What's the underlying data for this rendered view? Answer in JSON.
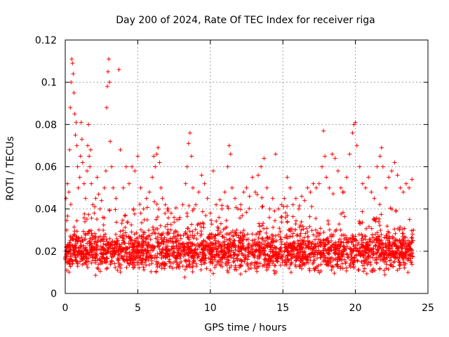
{
  "chart_data": {
    "type": "scatter",
    "title": "Day 200 of 2024, Rate Of TEC Index for receiver riga",
    "xlabel": "GPS time / hours",
    "ylabel": "ROTI / TECUs",
    "xlim": [
      0,
      25
    ],
    "ylim": [
      0,
      0.12
    ],
    "x_ticks": [
      "0",
      "5",
      "10",
      "15",
      "20",
      "25"
    ],
    "y_ticks": [
      "0",
      "0.02",
      "0.04",
      "0.06",
      "0.08",
      "0.1",
      "0.12"
    ],
    "grid": true,
    "marker": "+",
    "color": "#ff0000",
    "series": [
      {
        "values": [
          [
            0.02,
            0.016
          ],
          [
            0.05,
            0.045
          ],
          [
            0.1,
            0.03
          ],
          [
            0.15,
            0.052
          ],
          [
            0.2,
            0.022
          ],
          [
            0.25,
            0.048
          ],
          [
            0.3,
            0.068
          ],
          [
            0.35,
            0.088
          ],
          [
            0.4,
            0.1
          ],
          [
            0.45,
            0.111
          ],
          [
            0.5,
            0.109
          ],
          [
            0.55,
            0.104
          ],
          [
            0.6,
            0.095
          ],
          [
            0.65,
            0.085
          ],
          [
            0.7,
            0.075
          ],
          [
            0.75,
            0.081
          ],
          [
            0.8,
            0.07
          ],
          [
            0.85,
            0.06
          ],
          [
            0.9,
            0.05
          ],
          [
            1.0,
            0.055
          ],
          [
            1.05,
            0.065
          ],
          [
            1.1,
            0.081
          ],
          [
            1.15,
            0.073
          ],
          [
            1.2,
            0.062
          ],
          [
            1.3,
            0.052
          ],
          [
            1.4,
            0.045
          ],
          [
            1.5,
            0.058
          ],
          [
            1.55,
            0.07
          ],
          [
            1.6,
            0.08
          ],
          [
            1.65,
            0.065
          ],
          [
            1.7,
            0.06
          ],
          [
            1.75,
            0.068
          ],
          [
            1.8,
            0.052
          ],
          [
            1.9,
            0.042
          ],
          [
            2.0,
            0.038
          ],
          [
            2.1,
            0.045
          ],
          [
            2.2,
            0.055
          ],
          [
            2.3,
            0.047
          ],
          [
            2.4,
            0.04
          ],
          [
            2.5,
            0.044
          ],
          [
            2.6,
            0.036
          ],
          [
            2.7,
            0.05
          ],
          [
            2.8,
            0.058
          ],
          [
            2.85,
            0.088
          ],
          [
            2.9,
            0.098
          ],
          [
            2.95,
            0.105
          ],
          [
            3.0,
            0.111
          ],
          [
            3.05,
            0.1
          ],
          [
            3.1,
            0.072
          ],
          [
            3.2,
            0.06
          ],
          [
            3.3,
            0.05
          ],
          [
            3.5,
            0.045
          ],
          [
            3.7,
            0.106
          ],
          [
            3.8,
            0.068
          ],
          [
            4.0,
            0.05
          ],
          [
            4.2,
            0.06
          ],
          [
            4.4,
            0.052
          ],
          [
            4.6,
            0.06
          ],
          [
            4.8,
            0.058
          ],
          [
            5.0,
            0.065
          ],
          [
            5.2,
            0.05
          ],
          [
            5.4,
            0.04
          ],
          [
            5.6,
            0.045
          ],
          [
            5.8,
            0.048
          ],
          [
            6.0,
            0.055
          ],
          [
            6.1,
            0.065
          ],
          [
            6.2,
            0.06
          ],
          [
            6.3,
            0.066
          ],
          [
            6.4,
            0.069
          ],
          [
            6.5,
            0.062
          ],
          [
            6.6,
            0.05
          ],
          [
            6.7,
            0.045
          ],
          [
            6.9,
            0.042
          ],
          [
            7.1,
            0.04
          ],
          [
            7.3,
            0.038
          ],
          [
            7.5,
            0.036
          ],
          [
            7.7,
            0.035
          ],
          [
            7.9,
            0.036
          ],
          [
            8.1,
            0.042
          ],
          [
            8.3,
            0.052
          ],
          [
            8.4,
            0.06
          ],
          [
            8.5,
            0.071
          ],
          [
            8.6,
            0.076
          ],
          [
            8.7,
            0.065
          ],
          [
            8.8,
            0.05
          ],
          [
            9.0,
            0.042
          ],
          [
            9.2,
            0.048
          ],
          [
            9.4,
            0.056
          ],
          [
            9.6,
            0.052
          ],
          [
            9.8,
            0.045
          ],
          [
            10.0,
            0.038
          ],
          [
            10.2,
            0.058
          ],
          [
            10.4,
            0.042
          ],
          [
            10.6,
            0.036
          ],
          [
            10.8,
            0.04
          ],
          [
            11.0,
            0.048
          ],
          [
            11.2,
            0.06
          ],
          [
            11.3,
            0.07
          ],
          [
            11.4,
            0.066
          ],
          [
            11.5,
            0.05
          ],
          [
            11.7,
            0.045
          ],
          [
            11.9,
            0.04
          ],
          [
            12.1,
            0.042
          ],
          [
            12.3,
            0.048
          ],
          [
            12.5,
            0.05
          ],
          [
            12.7,
            0.046
          ],
          [
            12.9,
            0.055
          ],
          [
            13.1,
            0.048
          ],
          [
            13.3,
            0.056
          ],
          [
            13.5,
            0.06
          ],
          [
            13.7,
            0.064
          ],
          [
            13.9,
            0.05
          ],
          [
            14.1,
            0.04
          ],
          [
            14.3,
            0.045
          ],
          [
            14.5,
            0.066
          ],
          [
            14.7,
            0.04
          ],
          [
            14.9,
            0.042
          ],
          [
            15.1,
            0.045
          ],
          [
            15.3,
            0.055
          ],
          [
            15.5,
            0.05
          ],
          [
            15.7,
            0.042
          ],
          [
            15.9,
            0.045
          ],
          [
            16.1,
            0.04
          ],
          [
            16.3,
            0.046
          ],
          [
            16.5,
            0.044
          ],
          [
            16.7,
            0.05
          ],
          [
            16.9,
            0.048
          ],
          [
            17.1,
            0.052
          ],
          [
            17.3,
            0.05
          ],
          [
            17.5,
            0.052
          ],
          [
            17.7,
            0.06
          ],
          [
            17.8,
            0.077
          ],
          [
            17.9,
            0.065
          ],
          [
            18.0,
            0.055
          ],
          [
            18.2,
            0.05
          ],
          [
            18.4,
            0.066
          ],
          [
            18.6,
            0.064
          ],
          [
            18.8,
            0.058
          ],
          [
            19.0,
            0.05
          ],
          [
            19.2,
            0.048
          ],
          [
            19.4,
            0.055
          ],
          [
            19.6,
            0.066
          ],
          [
            19.8,
            0.076
          ],
          [
            19.9,
            0.08
          ],
          [
            20.0,
            0.081
          ],
          [
            20.1,
            0.07
          ],
          [
            20.3,
            0.06
          ],
          [
            20.5,
            0.052
          ],
          [
            20.7,
            0.05
          ],
          [
            20.9,
            0.055
          ],
          [
            21.1,
            0.048
          ],
          [
            21.3,
            0.045
          ],
          [
            21.5,
            0.06
          ],
          [
            21.7,
            0.065
          ],
          [
            21.8,
            0.069
          ],
          [
            21.9,
            0.06
          ],
          [
            22.1,
            0.05
          ],
          [
            22.3,
            0.055
          ],
          [
            22.5,
            0.058
          ],
          [
            22.7,
            0.062
          ],
          [
            22.9,
            0.056
          ],
          [
            23.1,
            0.05
          ],
          [
            23.3,
            0.048
          ],
          [
            23.5,
            0.052
          ],
          [
            23.7,
            0.05
          ],
          [
            23.9,
            0.054
          ],
          [
            24.0,
            0.03
          ]
        ]
      }
    ],
    "band": {
      "x_start": 0,
      "x_end": 24,
      "y_center": 0.02,
      "y_spread": 0.006,
      "y_min": 0.005
    }
  }
}
